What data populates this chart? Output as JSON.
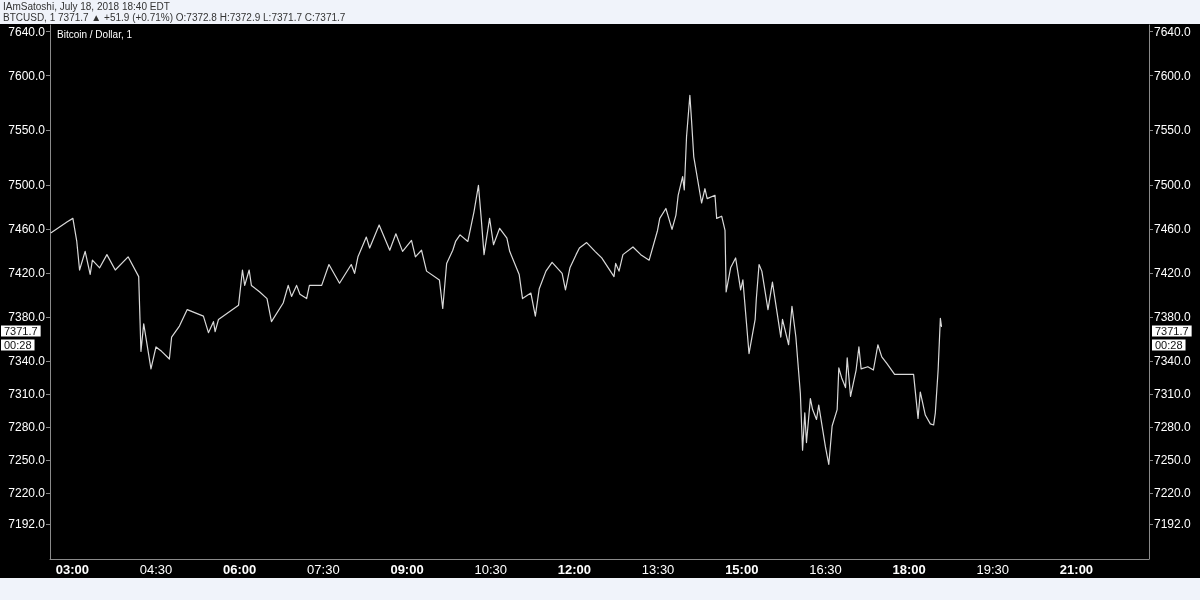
{
  "chart_data": {
    "type": "line",
    "title": "Bitcoin / Dollar, 1",
    "subtitle": "BTCUSD, 1  7371.7 ▲ +51.9 (+0.71%) O:7372.8 H:7372.9 L:7371.7 C:7371.7",
    "annotations": [
      "IAmSatoshi, July 18, 2018 18:40 EDT",
      "7371.7",
      "00:28"
    ],
    "color": "#d9d9d9",
    "marker": "none",
    "line_style": "solid",
    "x": [
      2.62,
      2.91,
      3.01,
      3.08,
      3.13,
      3.23,
      3.32,
      3.36,
      3.49,
      3.62,
      3.77,
      4.0,
      4.19,
      4.23,
      4.28,
      4.41,
      4.5,
      4.6,
      4.74,
      4.78,
      4.92,
      5.06,
      5.35,
      5.44,
      5.53,
      5.56,
      5.62,
      5.98,
      6.05,
      6.09,
      6.17,
      6.21,
      6.36,
      6.49,
      6.57,
      6.78,
      6.87,
      6.93,
      7.02,
      7.08,
      7.2,
      7.25,
      7.47,
      7.6,
      7.79,
      8.0,
      8.06,
      8.12,
      8.27,
      8.33,
      8.5,
      8.69,
      8.8,
      8.92,
      9.08,
      9.15,
      9.26,
      9.35,
      9.58,
      9.64,
      9.71,
      9.82,
      9.87,
      9.95,
      10.09,
      10.2,
      10.28,
      10.33,
      10.38,
      10.48,
      10.55,
      10.66,
      10.79,
      10.84,
      11.01,
      11.07,
      11.22,
      11.3,
      11.37,
      11.49,
      11.6,
      11.78,
      11.84,
      11.92,
      12.03,
      12.09,
      12.22,
      12.37,
      12.49,
      12.71,
      12.74,
      12.8,
      12.87,
      13.05,
      13.19,
      13.34,
      13.49,
      13.53,
      13.64,
      13.75,
      13.82,
      13.86,
      13.94,
      13.97,
      14.01,
      14.07,
      14.1,
      14.14,
      14.28,
      14.34,
      14.38,
      14.52,
      14.55,
      14.64,
      14.7,
      14.72,
      14.8,
      14.89,
      14.98,
      15.02,
      15.13,
      15.24,
      15.26,
      15.31,
      15.36,
      15.47,
      15.55,
      15.7,
      15.73,
      15.84,
      15.9,
      15.97,
      16.05,
      16.09,
      16.13,
      16.16,
      16.23,
      16.27,
      16.34,
      16.38,
      16.5,
      16.56,
      16.62,
      16.71,
      16.74,
      16.79,
      16.86,
      16.89,
      16.95,
      17.05,
      17.1,
      17.14,
      17.26,
      17.36,
      17.44,
      17.51,
      17.6,
      17.74,
      18.08,
      18.16,
      18.2,
      18.29,
      18.38,
      18.44,
      18.47,
      18.52,
      18.56,
      18.58
    ],
    "values": [
      7457,
      7467,
      7470,
      7449,
      7423,
      7440,
      7419,
      7432,
      7425,
      7437,
      7423,
      7435,
      7417,
      7349,
      7374,
      7333,
      7353,
      7349,
      7342,
      7362,
      7372,
      7387,
      7381,
      7366,
      7376,
      7367,
      7378,
      7391,
      7423,
      7409,
      7423,
      7409,
      7403,
      7397,
      7376,
      7393,
      7409,
      7399,
      7409,
      7401,
      7397,
      7409,
      7409,
      7428,
      7411,
      7428,
      7420,
      7435,
      7453,
      7443,
      7464,
      7441,
      7456,
      7440,
      7450,
      7435,
      7441,
      7422,
      7414,
      7388,
      7429,
      7441,
      7449,
      7455,
      7449,
      7476,
      7500,
      7470,
      7437,
      7470,
      7446,
      7461,
      7452,
      7440,
      7419,
      7397,
      7402,
      7381,
      7406,
      7422,
      7430,
      7420,
      7405,
      7425,
      7437,
      7443,
      7448,
      7440,
      7434,
      7417,
      7429,
      7422,
      7437,
      7444,
      7437,
      7432,
      7459,
      7470,
      7479,
      7460,
      7473,
      7491,
      7508,
      7496,
      7544,
      7582,
      7559,
      7526,
      7484,
      7497,
      7488,
      7491,
      7470,
      7472,
      7459,
      7403,
      7425,
      7434,
      7405,
      7414,
      7347,
      7378,
      7396,
      7428,
      7422,
      7387,
      7412,
      7362,
      7378,
      7355,
      7390,
      7362,
      7311,
      7259,
      7293,
      7266,
      7306,
      7296,
      7287,
      7300,
      7262,
      7246,
      7281,
      7296,
      7334,
      7325,
      7316,
      7343,
      7308,
      7332,
      7353,
      7333,
      7335,
      7332,
      7355,
      7344,
      7338,
      7328,
      7328,
      7288,
      7312,
      7291,
      7283,
      7282,
      7293,
      7332,
      7379,
      7371.7
    ],
    "xlim": [
      2.6,
      22.3
    ],
    "xticks": [
      {
        "value": 3,
        "label": "03:00"
      },
      {
        "value": 4.5,
        "label": "04:30"
      },
      {
        "value": 6,
        "label": "06:00"
      },
      {
        "value": 7.5,
        "label": "07:30"
      },
      {
        "value": 9,
        "label": "09:00"
      },
      {
        "value": 10.5,
        "label": "10:30"
      },
      {
        "value": 12,
        "label": "12:00"
      },
      {
        "value": 13.5,
        "label": "13:30"
      },
      {
        "value": 15,
        "label": "15:00"
      },
      {
        "value": 16.5,
        "label": "16:30"
      },
      {
        "value": 18,
        "label": "18:00"
      },
      {
        "value": 19.5,
        "label": "19:30"
      },
      {
        "value": 21,
        "label": "21:00"
      }
    ],
    "ylim": [
      7160,
      7646
    ],
    "yticks": [
      {
        "value": 7192,
        "label": "7192.0"
      },
      {
        "value": 7220,
        "label": "7220.0"
      },
      {
        "value": 7250,
        "label": "7250.0"
      },
      {
        "value": 7280,
        "label": "7280.0"
      },
      {
        "value": 7310,
        "label": "7310.0"
      },
      {
        "value": 7340,
        "label": "7340.0"
      },
      {
        "value": 7380,
        "label": "7380.0"
      },
      {
        "value": 7420,
        "label": "7420.0"
      },
      {
        "value": 7460,
        "label": "7460.0"
      },
      {
        "value": 7500,
        "label": "7500.0"
      },
      {
        "value": 7550,
        "label": "7550.0"
      },
      {
        "value": 7600,
        "label": "7600.0"
      },
      {
        "value": 7640,
        "label": "7640.0"
      }
    ],
    "y2lim": [
      7160,
      7646
    ],
    "y2ticks": [
      {
        "value": 7192,
        "label": "7192.0"
      },
      {
        "value": 7220,
        "label": "7220.0"
      },
      {
        "value": 7250,
        "label": "7250.0"
      },
      {
        "value": 7280,
        "label": "7280.0"
      },
      {
        "value": 7310,
        "label": "7310.0"
      },
      {
        "value": 7340,
        "label": "7340.0"
      },
      {
        "value": 7380,
        "label": "7380.0"
      },
      {
        "value": 7420,
        "label": "7420.0"
      },
      {
        "value": 7460,
        "label": "7460.0"
      },
      {
        "value": 7500,
        "label": "7500.0"
      },
      {
        "value": 7550,
        "label": "7550.0"
      },
      {
        "value": 7600,
        "label": "7600.0"
      },
      {
        "value": 7640,
        "label": "7640.0"
      }
    ]
  }
}
